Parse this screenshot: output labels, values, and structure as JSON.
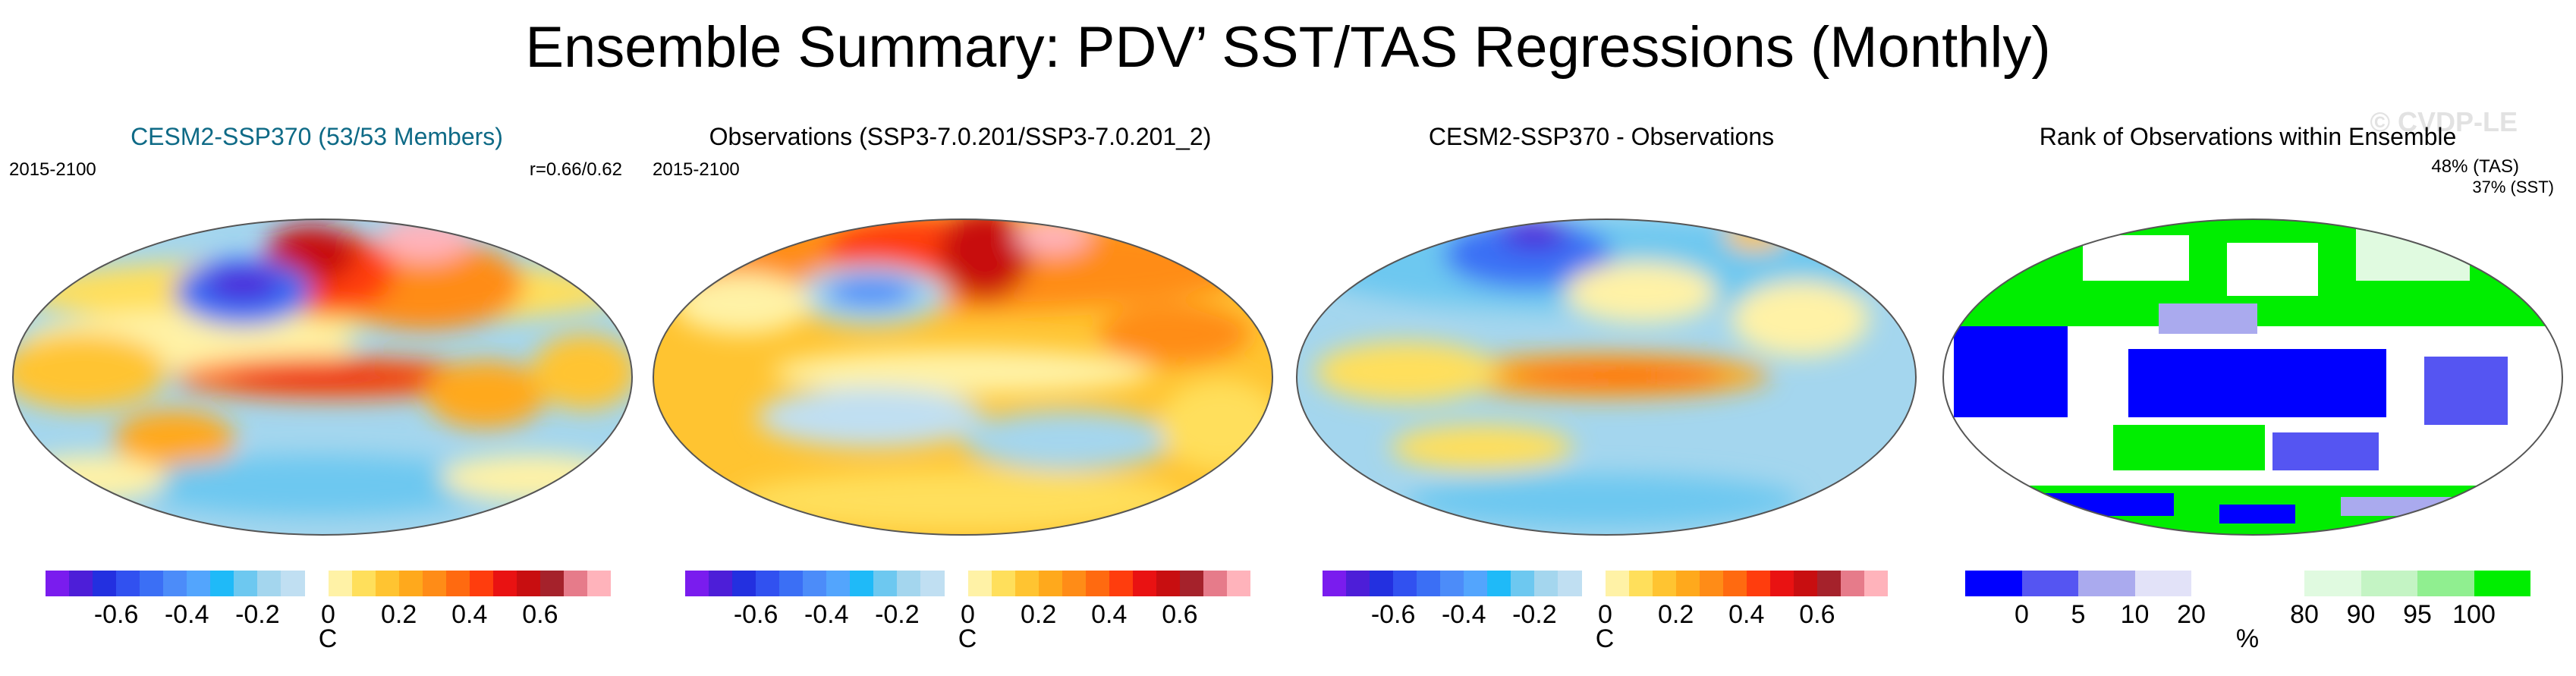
{
  "title": "Ensemble Summary: PDV’ SST/TAS Regressions (Monthly)",
  "watermark": "© CVDP-LE",
  "colors": {
    "title_teal": "#0e6a86",
    "diverging_scale": [
      "#7a1cee",
      "#4d1ed8",
      "#2330e0",
      "#3151f0",
      "#3b6ff5",
      "#4c8cf9",
      "#53a5fd",
      "#1fbaf8",
      "#6dc8f0",
      "#a4d6ee",
      "#c0dff2",
      "#ffffff",
      "#fff2a6",
      "#ffdf5b",
      "#ffc431",
      "#ffa91c",
      "#ff8c17",
      "#ff6a10",
      "#ff3d0d",
      "#e91212",
      "#c80e10",
      "#a5222b",
      "#e67b8a",
      "#ffb3bb"
    ],
    "rank_scale": [
      "#0000ff",
      "#5555f2",
      "#aaaaee",
      "#e2e2f8",
      "#ffffff",
      "#ffffff",
      "#e0fae0",
      "#c4f4c4",
      "#90ef90",
      "#00ee00"
    ]
  },
  "panels": [
    {
      "title": "CESM2-SSP370 (53/53 Members)",
      "period": "2015-2100",
      "correlation": "r=0.66/0.62",
      "colorbar": {
        "ticks": [
          "-0.6",
          "-0.4",
          "-0.2",
          "0",
          "0.2",
          "0.4",
          "0.6"
        ],
        "units": "C"
      }
    },
    {
      "title": "Observations (SSP3-7.0.201/SSP3-7.0.201_2)",
      "period": "2015-2100",
      "colorbar": {
        "ticks": [
          "-0.6",
          "-0.4",
          "-0.2",
          "0",
          "0.2",
          "0.4",
          "0.6"
        ],
        "units": "C"
      }
    },
    {
      "title": "CESM2-SSP370 - Observations",
      "colorbar": {
        "ticks": [
          "-0.6",
          "-0.4",
          "-0.2",
          "0",
          "0.2",
          "0.4",
          "0.6"
        ],
        "units": "C"
      }
    },
    {
      "title": "Rank of Observations within Ensemble",
      "rank_tas": "48% (TAS)",
      "rank_sst": "37% (SST)",
      "colorbar": {
        "ticks": [
          "0",
          "5",
          "10",
          "20",
          "80",
          "90",
          "95",
          "100"
        ],
        "units": "%"
      }
    }
  ]
}
